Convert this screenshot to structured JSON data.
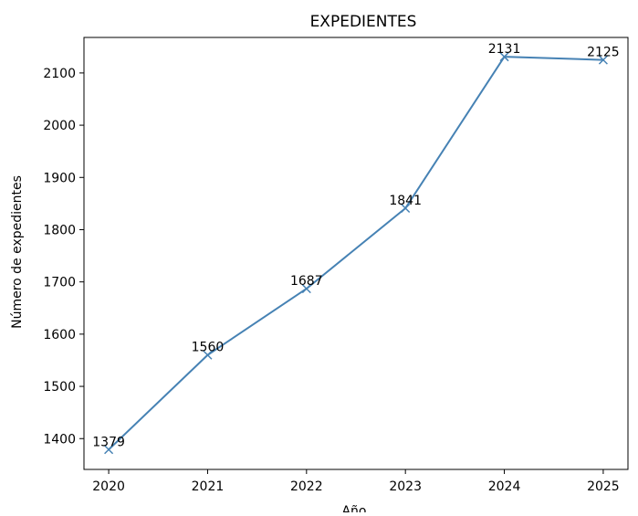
{
  "chart_data": {
    "type": "line",
    "title": "EXPEDIENTES",
    "xlabel": "Año",
    "ylabel": "Número de expedientes",
    "x": [
      2020,
      2021,
      2022,
      2023,
      2024,
      2025
    ],
    "series": [
      {
        "values": [
          1379,
          1560,
          1687,
          1841,
          2131,
          2125
        ],
        "color": "#4682b4",
        "marker": "x"
      }
    ],
    "data_labels": [
      "1379",
      "1560",
      "1687",
      "1841",
      "2131",
      "2125"
    ],
    "xlim": [
      2019.75,
      2025.25
    ],
    "ylim": [
      1341,
      2168
    ],
    "x_ticks": [
      2020,
      2021,
      2022,
      2023,
      2024,
      2025
    ],
    "y_ticks": [
      1400,
      1500,
      1600,
      1700,
      1800,
      1900,
      2000,
      2100
    ],
    "grid": false
  }
}
